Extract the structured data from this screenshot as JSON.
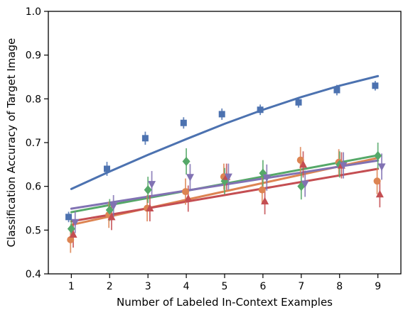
{
  "chart_data": {
    "type": "scatter",
    "title": "",
    "xlabel": "Number of Labeled In-Context Examples",
    "ylabel": "Classification Accuracy of Target Image",
    "xlim": [
      0.4,
      9.6
    ],
    "ylim": [
      0.4,
      1.0
    ],
    "x_ticks": [
      1,
      2,
      3,
      4,
      5,
      6,
      7,
      8,
      9
    ],
    "y_ticks": [
      0.4,
      0.5,
      0.6,
      0.7,
      0.8,
      0.9,
      1.0
    ],
    "x_tick_labels": [
      "1",
      "2",
      "3",
      "4",
      "5",
      "6",
      "7",
      "8",
      "9"
    ],
    "y_tick_labels": [
      "0.4",
      "0.5",
      "0.6",
      "0.7",
      "0.8",
      "0.9",
      "1.0"
    ],
    "grid": false,
    "legend": "none",
    "series": [
      {
        "color": "#4c72b0",
        "marker": "square",
        "offset": -0.07,
        "points": [
          {
            "x": 1,
            "y": 0.53,
            "err": 0.012
          },
          {
            "x": 2,
            "y": 0.64,
            "err": 0.016
          },
          {
            "x": 3,
            "y": 0.71,
            "err": 0.015
          },
          {
            "x": 4,
            "y": 0.745,
            "err": 0.013
          },
          {
            "x": 5,
            "y": 0.765,
            "err": 0.013
          },
          {
            "x": 6,
            "y": 0.775,
            "err": 0.012
          },
          {
            "x": 7,
            "y": 0.792,
            "err": 0.012
          },
          {
            "x": 8,
            "y": 0.82,
            "err": 0.012
          },
          {
            "x": 9,
            "y": 0.83,
            "err": 0.011
          }
        ],
        "fit": [
          {
            "x": 1,
            "y": 0.594
          },
          {
            "x": 2,
            "y": 0.634
          },
          {
            "x": 3,
            "y": 0.672
          },
          {
            "x": 4,
            "y": 0.708
          },
          {
            "x": 5,
            "y": 0.743
          },
          {
            "x": 6,
            "y": 0.775
          },
          {
            "x": 7,
            "y": 0.804
          },
          {
            "x": 8,
            "y": 0.83
          },
          {
            "x": 9,
            "y": 0.852
          }
        ]
      },
      {
        "color": "#dd8452",
        "marker": "circle",
        "offset": -0.02,
        "points": [
          {
            "x": 1,
            "y": 0.478,
            "err": 0.03
          },
          {
            "x": 2,
            "y": 0.535,
            "err": 0.03
          },
          {
            "x": 3,
            "y": 0.55,
            "err": 0.03
          },
          {
            "x": 4,
            "y": 0.588,
            "err": 0.03
          },
          {
            "x": 5,
            "y": 0.622,
            "err": 0.03
          },
          {
            "x": 6,
            "y": 0.592,
            "err": 0.03
          },
          {
            "x": 7,
            "y": 0.66,
            "err": 0.03
          },
          {
            "x": 8,
            "y": 0.655,
            "err": 0.03
          },
          {
            "x": 9,
            "y": 0.612,
            "err": 0.03
          }
        ],
        "fit": [
          {
            "x": 1,
            "y": 0.512
          },
          {
            "x": 9,
            "y": 0.665
          }
        ]
      },
      {
        "color": "#55a868",
        "marker": "diamond",
        "offset": 0.0,
        "points": [
          {
            "x": 1,
            "y": 0.503,
            "err": 0.022
          },
          {
            "x": 2,
            "y": 0.546,
            "err": 0.025
          },
          {
            "x": 3,
            "y": 0.592,
            "err": 0.03
          },
          {
            "x": 4,
            "y": 0.657,
            "err": 0.03
          },
          {
            "x": 5,
            "y": 0.612,
            "err": 0.03
          },
          {
            "x": 6,
            "y": 0.63,
            "err": 0.03
          },
          {
            "x": 7,
            "y": 0.6,
            "err": 0.03
          },
          {
            "x": 8,
            "y": 0.65,
            "err": 0.03
          },
          {
            "x": 9,
            "y": 0.67,
            "err": 0.03
          }
        ],
        "fit": [
          {
            "x": 1,
            "y": 0.541
          },
          {
            "x": 9,
            "y": 0.671
          }
        ]
      },
      {
        "color": "#c44e52",
        "marker": "triangle-up",
        "offset": 0.05,
        "points": [
          {
            "x": 1,
            "y": 0.49,
            "err": 0.03
          },
          {
            "x": 2,
            "y": 0.53,
            "err": 0.03
          },
          {
            "x": 3,
            "y": 0.55,
            "err": 0.03
          },
          {
            "x": 4,
            "y": 0.572,
            "err": 0.03
          },
          {
            "x": 5,
            "y": 0.622,
            "err": 0.03
          },
          {
            "x": 6,
            "y": 0.566,
            "err": 0.03
          },
          {
            "x": 7,
            "y": 0.65,
            "err": 0.03
          },
          {
            "x": 8,
            "y": 0.648,
            "err": 0.03
          },
          {
            "x": 9,
            "y": 0.582,
            "err": 0.03
          }
        ],
        "fit": [
          {
            "x": 1,
            "y": 0.52
          },
          {
            "x": 9,
            "y": 0.64
          }
        ]
      },
      {
        "color": "#8172b3",
        "marker": "triangle-down",
        "offset": 0.1,
        "points": [
          {
            "x": 1,
            "y": 0.518,
            "err": 0.025
          },
          {
            "x": 2,
            "y": 0.555,
            "err": 0.025
          },
          {
            "x": 3,
            "y": 0.605,
            "err": 0.03
          },
          {
            "x": 4,
            "y": 0.621,
            "err": 0.03
          },
          {
            "x": 5,
            "y": 0.622,
            "err": 0.03
          },
          {
            "x": 6,
            "y": 0.62,
            "err": 0.03
          },
          {
            "x": 7,
            "y": 0.606,
            "err": 0.03
          },
          {
            "x": 8,
            "y": 0.648,
            "err": 0.03
          },
          {
            "x": 9,
            "y": 0.645,
            "err": 0.03
          }
        ],
        "fit": [
          {
            "x": 1,
            "y": 0.549
          },
          {
            "x": 9,
            "y": 0.659
          }
        ]
      }
    ]
  }
}
